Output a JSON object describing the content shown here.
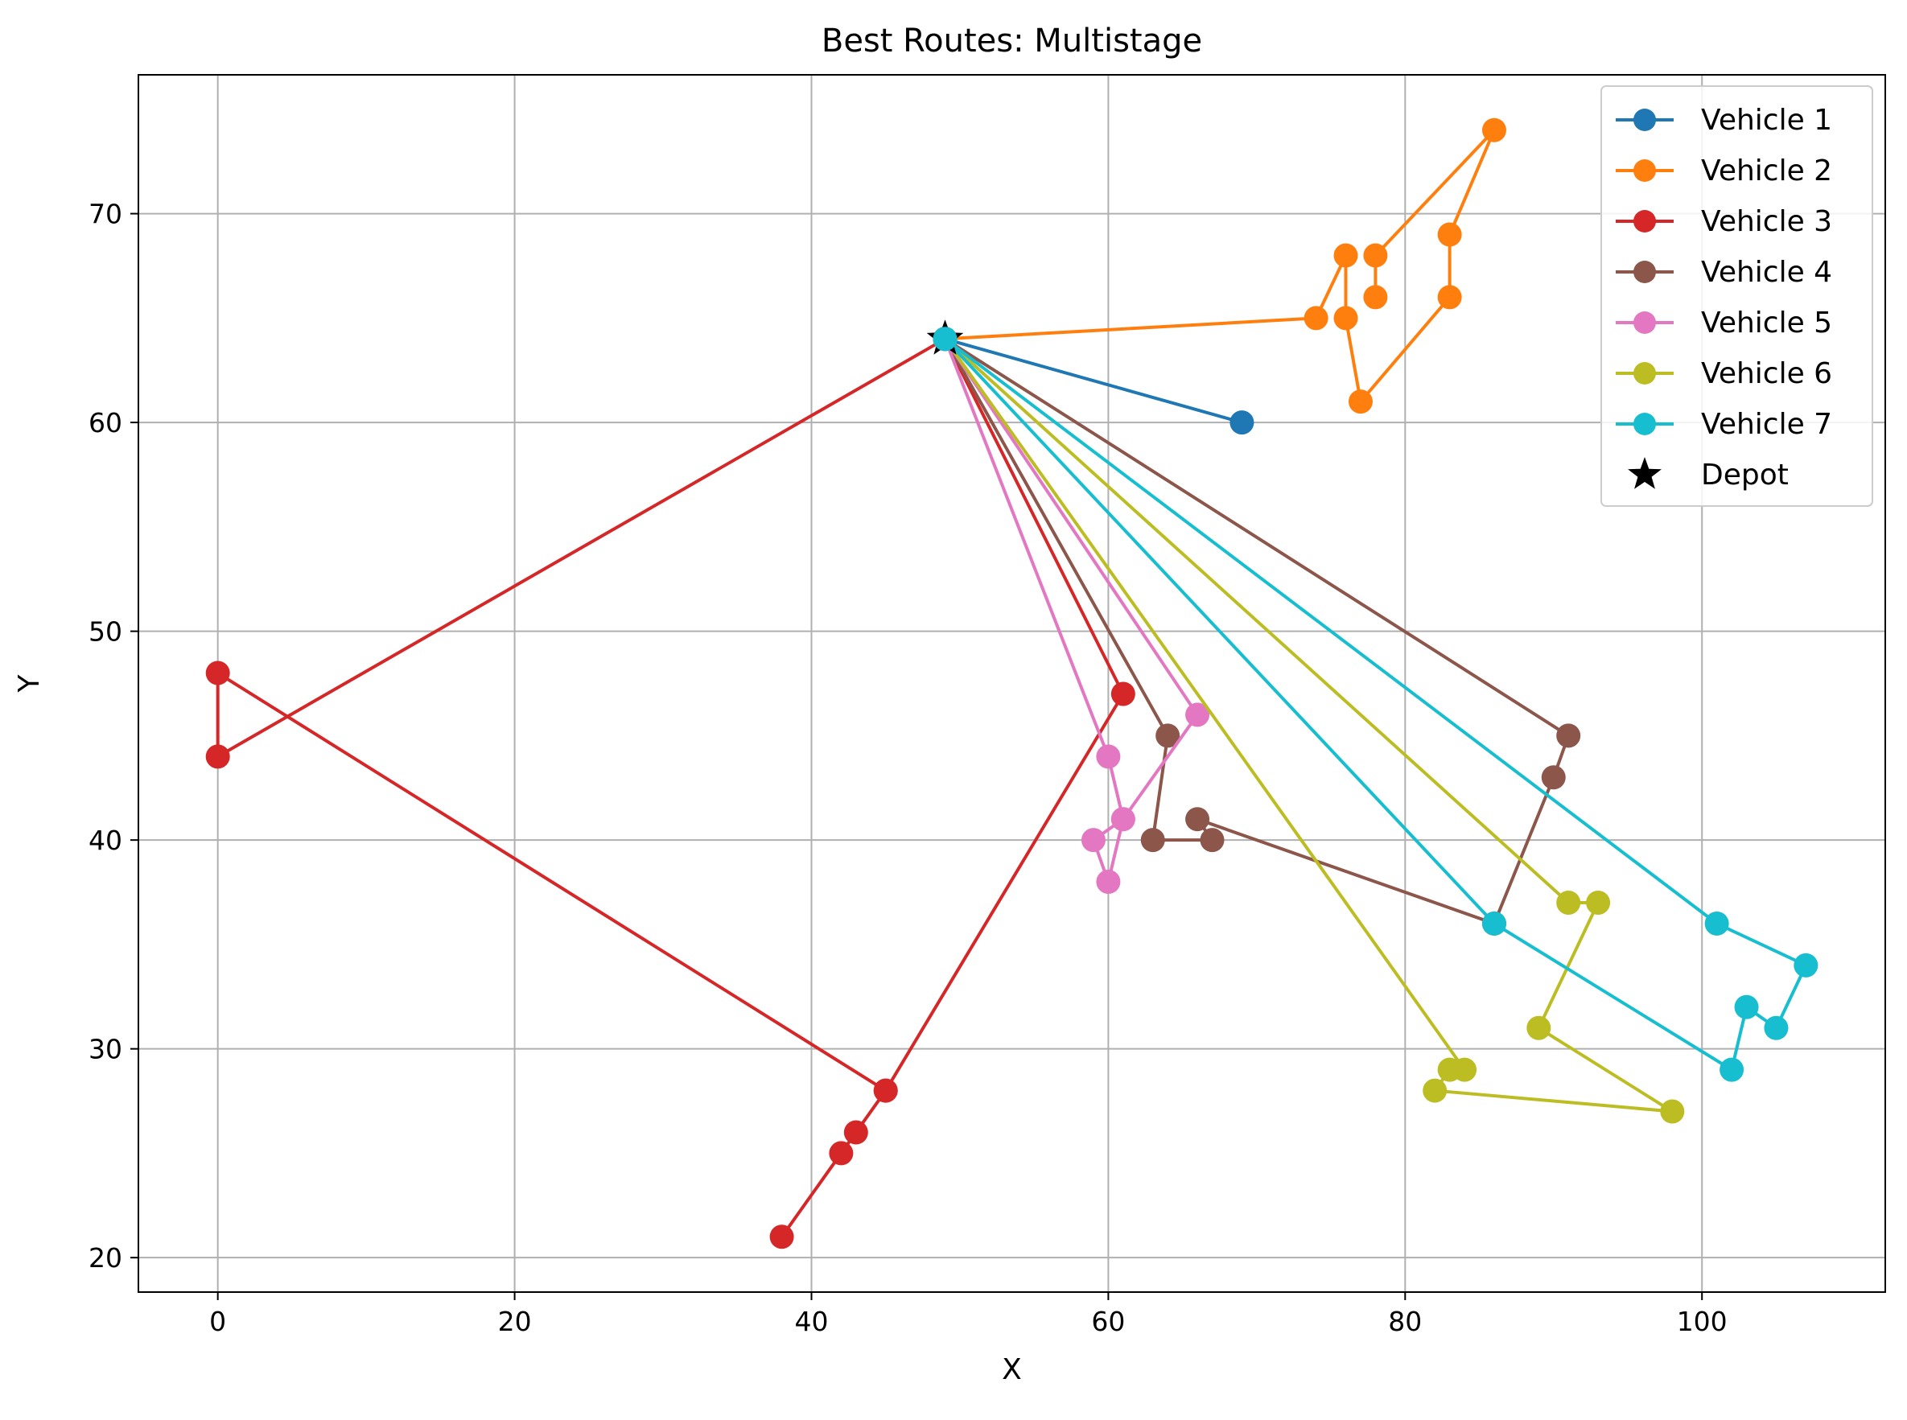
{
  "chart_data": {
    "type": "line",
    "title": "Best Routes: Multistage",
    "xlabel": "X",
    "ylabel": "Y",
    "xlim": [
      -5.35,
      112.35
    ],
    "ylim": [
      18.35,
      76.65
    ],
    "xticks": [
      0,
      20,
      40,
      60,
      80,
      100
    ],
    "yticks": [
      20,
      30,
      40,
      50,
      60,
      70
    ],
    "grid": true,
    "legend_position": "top-right",
    "depot": {
      "name": "Depot",
      "x": 49,
      "y": 64,
      "marker": "star",
      "color": "#000000"
    },
    "series": [
      {
        "name": "Vehicle 1",
        "color": "#1f77b4",
        "points": [
          [
            49,
            64
          ],
          [
            69,
            60
          ]
        ]
      },
      {
        "name": "Vehicle 2",
        "color": "#ff7f0e",
        "points": [
          [
            49,
            64
          ],
          [
            74,
            65
          ],
          [
            76,
            68
          ],
          [
            76,
            65
          ],
          [
            77,
            61
          ],
          [
            83,
            66
          ],
          [
            83,
            69
          ],
          [
            86,
            74
          ],
          [
            78,
            68
          ],
          [
            78,
            66
          ]
        ]
      },
      {
        "name": "Vehicle 3",
        "color": "#d62728",
        "points": [
          [
            49,
            64
          ],
          [
            0,
            44
          ],
          [
            0,
            48
          ],
          [
            45,
            28
          ],
          [
            43,
            26
          ],
          [
            42,
            25
          ],
          [
            38,
            21
          ],
          [
            45,
            28
          ],
          [
            61,
            47
          ],
          [
            49,
            64
          ]
        ]
      },
      {
        "name": "Vehicle 4",
        "color": "#8c564b",
        "points": [
          [
            49,
            64
          ],
          [
            91,
            45
          ],
          [
            90,
            43
          ],
          [
            86,
            36
          ],
          [
            66,
            41
          ],
          [
            67,
            40
          ],
          [
            63,
            40
          ],
          [
            64,
            45
          ],
          [
            49,
            64
          ]
        ]
      },
      {
        "name": "Vehicle 5",
        "color": "#e377c2",
        "points": [
          [
            49,
            64
          ],
          [
            60,
            44
          ],
          [
            61,
            41
          ],
          [
            60,
            38
          ],
          [
            59,
            40
          ],
          [
            61,
            41
          ],
          [
            66,
            46
          ],
          [
            49,
            64
          ]
        ]
      },
      {
        "name": "Vehicle 6",
        "color": "#bcbd22",
        "points": [
          [
            49,
            64
          ],
          [
            91,
            37
          ],
          [
            93,
            37
          ],
          [
            89,
            31
          ],
          [
            98,
            27
          ],
          [
            82,
            28
          ],
          [
            83,
            29
          ],
          [
            84,
            29
          ],
          [
            49,
            64
          ]
        ]
      },
      {
        "name": "Vehicle 7",
        "color": "#17becf",
        "points": [
          [
            49,
            64
          ],
          [
            101,
            36
          ],
          [
            107,
            34
          ],
          [
            105,
            31
          ],
          [
            103,
            32
          ],
          [
            102,
            29
          ],
          [
            86,
            36
          ],
          [
            49,
            64
          ]
        ]
      }
    ]
  }
}
